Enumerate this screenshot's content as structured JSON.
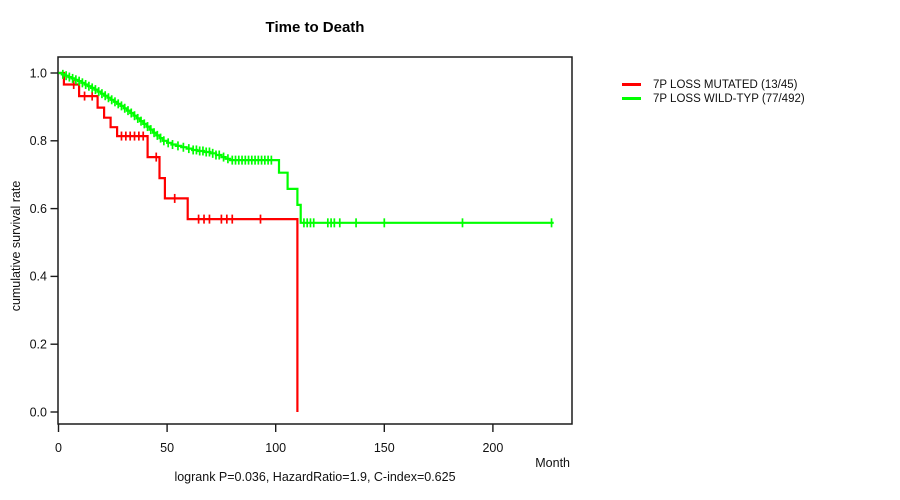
{
  "title": "Time to Death",
  "footer": "logrank P=0.036, HazardRatio=1.9, C-index=0.625",
  "chart_data": {
    "type": "line",
    "subtype": "kaplan-meier-step",
    "title": "Time to Death",
    "xlabel": "Month",
    "ylabel": "cumulative survival rate",
    "xlim": [
      0,
      235
    ],
    "ylim": [
      0.0,
      1.0
    ],
    "grid": false,
    "legend_position": "right-outside",
    "annotation": "logrank P=0.036, HazardRatio=1.9, C-index=0.625",
    "x_tick_values": [
      0,
      50,
      100,
      150,
      200
    ],
    "x_tick_labels": [
      "0",
      "50",
      "100",
      "150",
      "200"
    ],
    "y_tick_values": [
      0.0,
      0.2,
      0.4,
      0.6,
      0.8,
      1.0
    ],
    "y_tick_labels": [
      "0.0",
      "0.2",
      "0.4",
      "0.6",
      "0.8",
      "1.0"
    ],
    "axis_color": "#1b1b1b",
    "series": [
      {
        "name": "7P LOSS MUTATED (13/45)",
        "color": "#ff0000",
        "points": [
          [
            0,
            1.0
          ],
          [
            2.5,
            0.966
          ],
          [
            9.5,
            0.932
          ],
          [
            18,
            0.898
          ],
          [
            21,
            0.868
          ],
          [
            24,
            0.84
          ],
          [
            27,
            0.814
          ],
          [
            41,
            0.752
          ],
          [
            46.5,
            0.69
          ],
          [
            49,
            0.63
          ],
          [
            59.5,
            0.569
          ],
          [
            110,
            0.0
          ]
        ],
        "censors": [
          7,
          12,
          15.5,
          29,
          31,
          33,
          35,
          37,
          39,
          45,
          53.5,
          64.5,
          67,
          69.5,
          75,
          77.5,
          80,
          93
        ]
      },
      {
        "name": "7P LOSS WILD-TYP (77/492)",
        "color": "#00ff00",
        "points": [
          [
            0,
            1.0
          ],
          [
            1.5,
            0.996
          ],
          [
            3,
            0.992
          ],
          [
            4.5,
            0.988
          ],
          [
            6,
            0.984
          ],
          [
            7.5,
            0.98
          ],
          [
            9,
            0.976
          ],
          [
            10.5,
            0.971
          ],
          [
            12,
            0.966
          ],
          [
            13.5,
            0.961
          ],
          [
            15,
            0.956
          ],
          [
            16.5,
            0.951
          ],
          [
            18,
            0.945
          ],
          [
            19.5,
            0.939
          ],
          [
            21,
            0.933
          ],
          [
            22.5,
            0.927
          ],
          [
            24,
            0.921
          ],
          [
            25.5,
            0.915
          ],
          [
            27,
            0.909
          ],
          [
            28.5,
            0.903
          ],
          [
            30,
            0.896
          ],
          [
            31.5,
            0.889
          ],
          [
            33,
            0.882
          ],
          [
            34.5,
            0.874
          ],
          [
            36,
            0.866
          ],
          [
            37.5,
            0.858
          ],
          [
            39,
            0.85
          ],
          [
            40.5,
            0.842
          ],
          [
            42,
            0.833
          ],
          [
            43.5,
            0.824
          ],
          [
            45,
            0.816
          ],
          [
            46.5,
            0.808
          ],
          [
            48,
            0.8
          ],
          [
            50,
            0.794
          ],
          [
            52,
            0.789
          ],
          [
            54,
            0.785
          ],
          [
            56.5,
            0.781
          ],
          [
            59,
            0.777
          ],
          [
            61.5,
            0.773
          ],
          [
            64,
            0.77
          ],
          [
            67,
            0.767
          ],
          [
            70,
            0.763
          ],
          [
            72.5,
            0.758
          ],
          [
            75,
            0.752
          ],
          [
            77,
            0.747
          ],
          [
            79,
            0.743
          ],
          [
            101.5,
            0.706
          ],
          [
            105.5,
            0.658
          ],
          [
            110,
            0.611
          ],
          [
            111.5,
            0.558
          ],
          [
            228,
            0.558
          ]
        ],
        "censors": [
          2,
          3.5,
          5,
          6.5,
          8,
          9.5,
          11,
          12.5,
          14,
          15.5,
          17,
          18.5,
          20,
          21.5,
          23,
          24.5,
          26,
          27.5,
          29,
          30.5,
          32,
          33.5,
          35,
          36.5,
          38,
          39.5,
          41,
          42.5,
          44,
          45.5,
          47,
          48.5,
          50.5,
          52.5,
          55,
          57.5,
          60,
          62,
          63.5,
          65,
          66.5,
          68,
          69.5,
          71,
          72.5,
          74,
          76,
          78,
          80,
          81.5,
          83,
          84.5,
          86,
          87.5,
          89,
          90.5,
          92,
          93.5,
          95,
          96.5,
          98,
          113,
          114.5,
          116,
          117.5,
          124,
          125.5,
          127,
          129.5,
          137,
          150,
          186,
          227
        ]
      }
    ]
  }
}
